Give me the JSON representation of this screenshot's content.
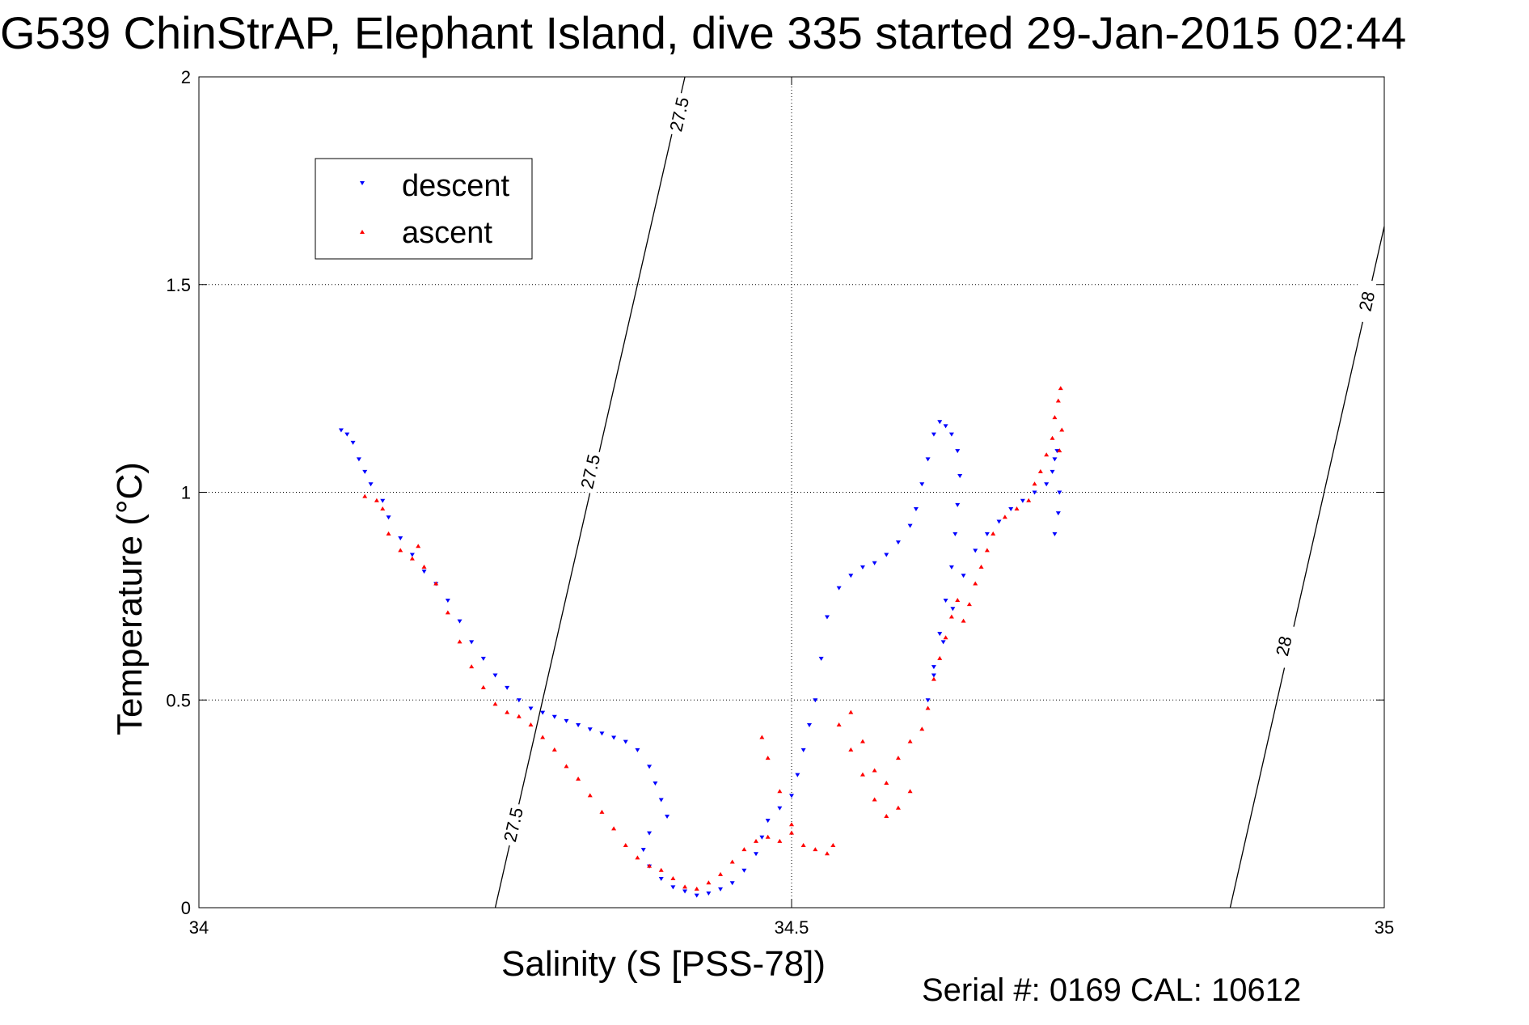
{
  "chart_data": {
    "type": "scatter",
    "title": "G539 ChinStrAP, Elephant Island, dive 335 started 29-Jan-2015 02:44",
    "xlabel": "Salinity (S [PSS-78])",
    "ylabel": "Temperature (°C)",
    "xlim": [
      34,
      35
    ],
    "ylim": [
      0,
      2
    ],
    "xticks": [
      34,
      34.5,
      35
    ],
    "xtick_labels": [
      "34",
      "34.5",
      "35"
    ],
    "yticks": [
      0,
      0.5,
      1,
      1.5,
      2
    ],
    "ytick_labels": [
      "0",
      "0.5",
      "1",
      "1.5",
      "2"
    ],
    "grid": true,
    "legend_position": "top-left",
    "footer": "Serial #: 0169 CAL: 10612",
    "colors": {
      "descent": "#0000ff",
      "ascent": "#ff0000",
      "contour": "#000000"
    },
    "contours": [
      {
        "label": "27.5",
        "points": [
          [
            34.25,
            0
          ],
          [
            34.41,
            2
          ]
        ],
        "label_positions": [
          [
            34.265,
            0.2
          ],
          [
            34.33,
            1.05
          ],
          [
            34.405,
            1.91
          ]
        ]
      },
      {
        "label": "28",
        "points": [
          [
            34.87,
            0
          ],
          [
            35.0,
            1.64
          ]
        ],
        "label_positions": [
          [
            34.915,
            0.63
          ],
          [
            34.985,
            1.46
          ]
        ]
      }
    ],
    "series": [
      {
        "name": "descent",
        "marker": "triangle-down",
        "points": [
          [
            34.12,
            1.15
          ],
          [
            34.125,
            1.14
          ],
          [
            34.13,
            1.12
          ],
          [
            34.135,
            1.08
          ],
          [
            34.14,
            1.05
          ],
          [
            34.145,
            1.02
          ],
          [
            34.155,
            0.98
          ],
          [
            34.16,
            0.94
          ],
          [
            34.17,
            0.89
          ],
          [
            34.18,
            0.85
          ],
          [
            34.19,
            0.81
          ],
          [
            34.2,
            0.78
          ],
          [
            34.21,
            0.74
          ],
          [
            34.22,
            0.69
          ],
          [
            34.23,
            0.64
          ],
          [
            34.24,
            0.6
          ],
          [
            34.25,
            0.56
          ],
          [
            34.26,
            0.53
          ],
          [
            34.27,
            0.5
          ],
          [
            34.28,
            0.48
          ],
          [
            34.29,
            0.47
          ],
          [
            34.3,
            0.46
          ],
          [
            34.31,
            0.45
          ],
          [
            34.32,
            0.44
          ],
          [
            34.33,
            0.43
          ],
          [
            34.34,
            0.42
          ],
          [
            34.35,
            0.41
          ],
          [
            34.36,
            0.4
          ],
          [
            34.37,
            0.38
          ],
          [
            34.38,
            0.34
          ],
          [
            34.385,
            0.3
          ],
          [
            34.39,
            0.26
          ],
          [
            34.395,
            0.22
          ],
          [
            34.38,
            0.18
          ],
          [
            34.375,
            0.14
          ],
          [
            34.38,
            0.1
          ],
          [
            34.39,
            0.07
          ],
          [
            34.4,
            0.05
          ],
          [
            34.41,
            0.04
          ],
          [
            34.42,
            0.03
          ],
          [
            34.43,
            0.035
          ],
          [
            34.44,
            0.045
          ],
          [
            34.45,
            0.06
          ],
          [
            34.46,
            0.09
          ],
          [
            34.47,
            0.13
          ],
          [
            34.475,
            0.17
          ],
          [
            34.48,
            0.21
          ],
          [
            34.49,
            0.24
          ],
          [
            34.5,
            0.27
          ],
          [
            34.505,
            0.32
          ],
          [
            34.51,
            0.38
          ],
          [
            34.515,
            0.44
          ],
          [
            34.52,
            0.5
          ],
          [
            34.525,
            0.6
          ],
          [
            34.53,
            0.7
          ],
          [
            34.54,
            0.77
          ],
          [
            34.55,
            0.8
          ],
          [
            34.56,
            0.82
          ],
          [
            34.57,
            0.83
          ],
          [
            34.58,
            0.85
          ],
          [
            34.59,
            0.88
          ],
          [
            34.6,
            0.92
          ],
          [
            34.605,
            0.96
          ],
          [
            34.61,
            1.02
          ],
          [
            34.615,
            1.08
          ],
          [
            34.62,
            1.14
          ],
          [
            34.625,
            1.17
          ],
          [
            34.63,
            1.16
          ],
          [
            34.635,
            1.14
          ],
          [
            34.64,
            1.1
          ],
          [
            34.642,
            1.04
          ],
          [
            34.64,
            0.97
          ],
          [
            34.638,
            0.9
          ],
          [
            34.635,
            0.82
          ],
          [
            34.63,
            0.74
          ],
          [
            34.625,
            0.66
          ],
          [
            34.62,
            0.58
          ],
          [
            34.615,
            0.5
          ],
          [
            34.62,
            0.56
          ],
          [
            34.628,
            0.64
          ],
          [
            34.636,
            0.72
          ],
          [
            34.645,
            0.8
          ],
          [
            34.655,
            0.86
          ],
          [
            34.665,
            0.9
          ],
          [
            34.675,
            0.93
          ],
          [
            34.685,
            0.96
          ],
          [
            34.695,
            0.98
          ],
          [
            34.705,
            1.0
          ],
          [
            34.715,
            1.02
          ],
          [
            34.72,
            1.05
          ],
          [
            34.722,
            1.08
          ],
          [
            34.724,
            1.1
          ],
          [
            34.726,
            1.0
          ],
          [
            34.725,
            0.95
          ],
          [
            34.722,
            0.9
          ]
        ]
      },
      {
        "name": "ascent",
        "marker": "triangle-up",
        "points": [
          [
            34.14,
            0.99
          ],
          [
            34.15,
            0.98
          ],
          [
            34.155,
            0.96
          ],
          [
            34.16,
            0.9
          ],
          [
            34.17,
            0.86
          ],
          [
            34.18,
            0.84
          ],
          [
            34.185,
            0.87
          ],
          [
            34.19,
            0.82
          ],
          [
            34.2,
            0.78
          ],
          [
            34.21,
            0.71
          ],
          [
            34.22,
            0.64
          ],
          [
            34.23,
            0.58
          ],
          [
            34.24,
            0.53
          ],
          [
            34.25,
            0.49
          ],
          [
            34.26,
            0.47
          ],
          [
            34.27,
            0.46
          ],
          [
            34.28,
            0.44
          ],
          [
            34.29,
            0.41
          ],
          [
            34.3,
            0.38
          ],
          [
            34.31,
            0.34
          ],
          [
            34.32,
            0.31
          ],
          [
            34.33,
            0.27
          ],
          [
            34.34,
            0.23
          ],
          [
            34.35,
            0.19
          ],
          [
            34.36,
            0.15
          ],
          [
            34.37,
            0.12
          ],
          [
            34.38,
            0.1
          ],
          [
            34.39,
            0.09
          ],
          [
            34.4,
            0.07
          ],
          [
            34.41,
            0.05
          ],
          [
            34.42,
            0.045
          ],
          [
            34.43,
            0.06
          ],
          [
            34.44,
            0.08
          ],
          [
            34.45,
            0.11
          ],
          [
            34.46,
            0.14
          ],
          [
            34.47,
            0.16
          ],
          [
            34.48,
            0.17
          ],
          [
            34.49,
            0.16
          ],
          [
            34.5,
            0.18
          ],
          [
            34.51,
            0.15
          ],
          [
            34.52,
            0.14
          ],
          [
            34.53,
            0.13
          ],
          [
            34.535,
            0.15
          ],
          [
            34.5,
            0.2
          ],
          [
            34.49,
            0.28
          ],
          [
            34.48,
            0.36
          ],
          [
            34.475,
            0.41
          ],
          [
            34.54,
            0.44
          ],
          [
            34.55,
            0.38
          ],
          [
            34.56,
            0.32
          ],
          [
            34.57,
            0.26
          ],
          [
            34.58,
            0.22
          ],
          [
            34.59,
            0.24
          ],
          [
            34.6,
            0.28
          ],
          [
            34.55,
            0.47
          ],
          [
            34.56,
            0.4
          ],
          [
            34.57,
            0.33
          ],
          [
            34.58,
            0.3
          ],
          [
            34.59,
            0.36
          ],
          [
            34.6,
            0.4
          ],
          [
            34.61,
            0.43
          ],
          [
            34.615,
            0.48
          ],
          [
            34.62,
            0.55
          ],
          [
            34.625,
            0.6
          ],
          [
            34.63,
            0.65
          ],
          [
            34.635,
            0.7
          ],
          [
            34.64,
            0.74
          ],
          [
            34.645,
            0.69
          ],
          [
            34.65,
            0.73
          ],
          [
            34.655,
            0.78
          ],
          [
            34.66,
            0.82
          ],
          [
            34.665,
            0.86
          ],
          [
            34.67,
            0.9
          ],
          [
            34.68,
            0.94
          ],
          [
            34.69,
            0.96
          ],
          [
            34.7,
            0.98
          ],
          [
            34.705,
            1.02
          ],
          [
            34.71,
            1.05
          ],
          [
            34.715,
            1.09
          ],
          [
            34.72,
            1.13
          ],
          [
            34.722,
            1.18
          ],
          [
            34.725,
            1.22
          ],
          [
            34.727,
            1.25
          ],
          [
            34.728,
            1.15
          ],
          [
            34.726,
            1.1
          ]
        ]
      }
    ]
  }
}
